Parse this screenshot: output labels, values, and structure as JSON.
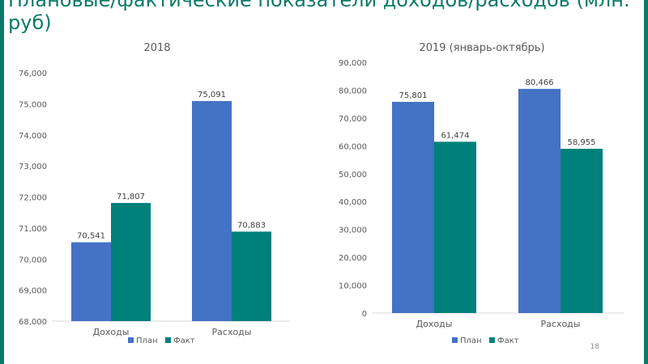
{
  "slide": {
    "title": "Плановые/фактические показатели доходов/расходов (млн. руб)",
    "page_number": "18"
  },
  "colors": {
    "plan": "#4472c4",
    "fact": "#00807a",
    "frame": "#0b7a6a",
    "grid": "#d9d9d9",
    "text": "#595959"
  },
  "chart_data": [
    {
      "type": "bar",
      "title": "2018",
      "categories": [
        "Доходы",
        "Расходы"
      ],
      "series": [
        {
          "name": "План",
          "values": [
            70.541,
            75.091
          ],
          "labels": [
            "70,541",
            "75,091"
          ]
        },
        {
          "name": "Факт",
          "values": [
            71.807,
            70.883
          ],
          "labels": [
            "71,807",
            "70,883"
          ]
        }
      ],
      "ylim": [
        68,
        76
      ],
      "yticks": [
        68,
        69,
        70,
        71,
        72,
        73,
        74,
        75,
        76
      ],
      "ytick_labels": [
        "68,000",
        "69,000",
        "70,000",
        "71,000",
        "72,000",
        "73,000",
        "74,000",
        "75,000",
        "76,000"
      ],
      "grid": false,
      "legend": "bottom"
    },
    {
      "type": "bar",
      "title": "2019 (январь-октябрь)",
      "categories": [
        "Доходы",
        "Расходы"
      ],
      "series": [
        {
          "name": "План",
          "values": [
            75.801,
            80.466
          ],
          "labels": [
            "75,801",
            "80,466"
          ]
        },
        {
          "name": "Факт",
          "values": [
            61.474,
            58.955
          ],
          "labels": [
            "61,474",
            "58,955"
          ]
        }
      ],
      "ylim": [
        0,
        90
      ],
      "yticks": [
        0,
        10,
        20,
        30,
        40,
        50,
        60,
        70,
        80,
        90
      ],
      "ytick_labels": [
        "0",
        "10,000",
        "20,000",
        "30,000",
        "40,000",
        "50,000",
        "60,000",
        "70,000",
        "80,000",
        "90,000"
      ],
      "grid": false,
      "legend": "bottom"
    }
  ]
}
